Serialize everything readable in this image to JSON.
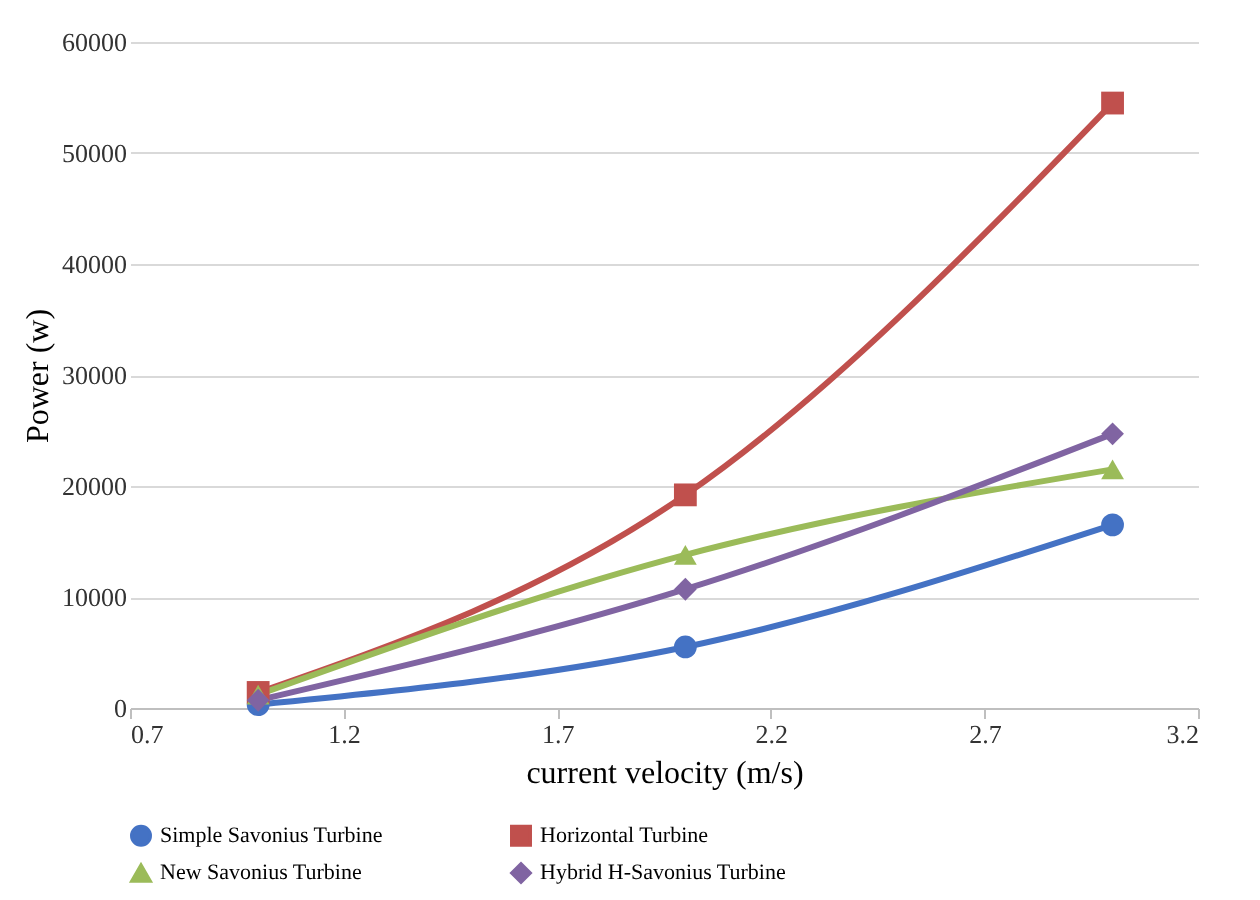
{
  "chart_data": {
    "type": "line",
    "xlabel": "current velocity (m/s)",
    "ylabel": "Power (w)",
    "x": [
      1,
      2,
      3
    ],
    "series": [
      {
        "name": "Simple Savonius Turbine",
        "color": "#4472c4",
        "marker": "circle",
        "values": [
          300,
          5500,
          16500
        ]
      },
      {
        "name": "Horizontal Turbine",
        "color": "#c0504d",
        "marker": "square",
        "values": [
          1400,
          19200,
          54500
        ]
      },
      {
        "name": "New Savonius Turbine",
        "color": "#9bbb59",
        "marker": "triangle",
        "values": [
          1200,
          13800,
          21500
        ]
      },
      {
        "name": "Hybrid H-Savonius Turbine",
        "color": "#8064a2",
        "marker": "diamond",
        "values": [
          700,
          10700,
          24700
        ]
      }
    ],
    "xlim": [
      0.7,
      3.2
    ],
    "xticks": [
      0.7,
      1.2,
      1.7,
      2.2,
      2.7,
      3.2
    ],
    "ylim": [
      0,
      60000
    ],
    "yticks": [
      0,
      10000,
      20000,
      30000,
      40000,
      50000,
      60000
    ],
    "grid": "y",
    "legend": "bottom"
  }
}
